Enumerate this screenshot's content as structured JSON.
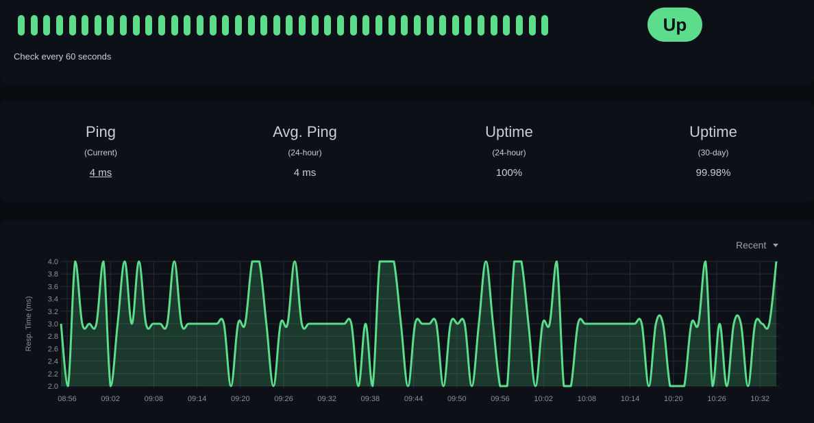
{
  "status": {
    "beat_count": 42,
    "beat_color": "#5cdd8b",
    "check_text": "Check every 60 seconds",
    "badge": "Up",
    "badge_color": "#5cdd8b"
  },
  "stats": [
    {
      "title": "Ping",
      "subtitle": "(Current)",
      "value": "4 ms",
      "link": true
    },
    {
      "title": "Avg. Ping",
      "subtitle": "(24-hour)",
      "value": "4 ms",
      "link": false
    },
    {
      "title": "Uptime",
      "subtitle": "(24-hour)",
      "value": "100%",
      "link": false
    },
    {
      "title": "Uptime",
      "subtitle": "(30-day)",
      "value": "99.98%",
      "link": false
    }
  ],
  "chart": {
    "range_label": "Recent"
  },
  "chart_data": {
    "type": "area",
    "ylabel": "Resp. Time (ms)",
    "xlabel": "",
    "ylim": [
      2.0,
      4.0
    ],
    "yticks": [
      "2.0",
      "2.2",
      "2.4",
      "2.6",
      "2.8",
      "3.0",
      "3.2",
      "3.4",
      "3.6",
      "3.8",
      "4.0"
    ],
    "xticks": [
      "08:56",
      "09:02",
      "09:08",
      "09:14",
      "09:20",
      "09:26",
      "09:32",
      "09:38",
      "09:44",
      "09:50",
      "09:56",
      "10:02",
      "10:08",
      "10:14",
      "10:20",
      "10:26",
      "10:32"
    ],
    "grid": true,
    "line_color": "#5cdd8b",
    "series": [
      {
        "values": [
          3,
          2,
          4,
          3,
          3,
          3,
          4,
          2,
          3,
          4,
          3,
          4,
          3,
          3,
          3,
          3,
          4,
          3,
          3,
          3,
          3,
          3,
          3,
          3,
          2,
          3,
          3,
          4,
          4,
          3,
          2,
          3,
          3,
          4,
          3,
          3,
          3,
          3,
          3,
          3,
          3,
          3,
          2,
          3,
          2,
          4,
          4,
          4,
          3,
          2,
          3,
          3,
          3,
          3,
          2,
          3,
          3,
          3,
          2,
          3,
          4,
          3,
          2,
          2,
          4,
          4,
          3,
          2,
          3,
          3,
          4,
          2,
          2,
          3,
          3,
          3,
          3,
          3,
          3,
          3,
          3,
          3,
          3,
          2,
          3,
          3,
          2,
          2,
          2,
          3,
          3,
          4,
          2,
          3,
          2,
          3,
          3,
          2,
          3,
          3,
          3,
          4
        ]
      }
    ]
  }
}
